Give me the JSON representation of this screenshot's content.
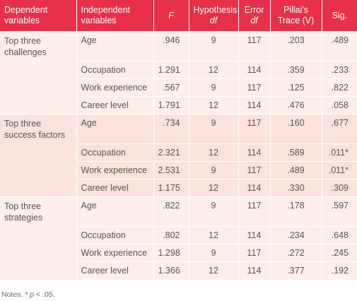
{
  "table": {
    "headers": {
      "dependent": [
        "Dependent",
        "variables"
      ],
      "independent": [
        "Independent",
        "variables"
      ],
      "f": "F",
      "hypothesis": [
        "Hypothesis",
        "df"
      ],
      "error": [
        "Error",
        "df"
      ],
      "pillai": [
        "Pillai's",
        "Trace (V)"
      ],
      "sig": "Sig."
    },
    "groups": [
      {
        "dependent": "Top three challenges",
        "rows": [
          {
            "iv": "Age",
            "f": ".946",
            "hyp": "9",
            "err": "117",
            "pillai": ".203",
            "sig": ".489"
          },
          {
            "iv": "Occupation",
            "f": "1.291",
            "hyp": "12",
            "err": "114",
            "pillai": ".359",
            "sig": ".233"
          },
          {
            "iv": "Work experience",
            "f": ".567",
            "hyp": "9",
            "err": "117",
            "pillai": ".125",
            "sig": ".822"
          },
          {
            "iv": "Career level",
            "f": "1.791",
            "hyp": "12",
            "err": "114",
            "pillai": ".476",
            "sig": ".058"
          }
        ]
      },
      {
        "dependent": "Top three success factors",
        "rows": [
          {
            "iv": "Age",
            "f": ".734",
            "hyp": "9",
            "err": "117",
            "pillai": ".160",
            "sig": ".677"
          },
          {
            "iv": "Occupation",
            "f": "2.321",
            "hyp": "12",
            "err": "114",
            "pillai": ".589",
            "sig": ".011*"
          },
          {
            "iv": "Work experience",
            "f": "2.531",
            "hyp": "9",
            "err": "117",
            "pillai": ".489",
            "sig": ".011*"
          },
          {
            "iv": "Career level",
            "f": "1.175",
            "hyp": "12",
            "err": "114",
            "pillai": ".330",
            "sig": ".309"
          }
        ]
      },
      {
        "dependent": "Top three strategies",
        "rows": [
          {
            "iv": "Age",
            "f": ".822",
            "hyp": "9",
            "err": "117",
            "pillai": ".178",
            "sig": ".597"
          },
          {
            "iv": "Occupation",
            "f": ".802",
            "hyp": "12",
            "err": "114",
            "pillai": ".234",
            "sig": ".648"
          },
          {
            "iv": "Work experience",
            "f": "1.298",
            "hyp": "9",
            "err": "117",
            "pillai": ".272",
            "sig": ".245"
          },
          {
            "iv": "Career level",
            "f": "1.366",
            "hyp": "12",
            "err": "114",
            "pillai": ".377",
            "sig": ".192"
          }
        ]
      }
    ]
  },
  "notes": {
    "prefix": "Notes. * ",
    "p": "p",
    "suffix": " < .05."
  },
  "colors": {
    "header_bg": "#e8304a",
    "group_light": "#fdeeeb",
    "group_dark": "#fbe2dc"
  }
}
